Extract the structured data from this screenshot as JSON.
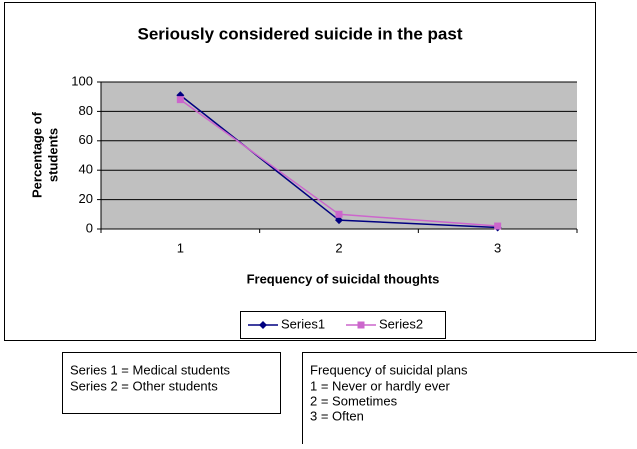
{
  "chart_data": {
    "type": "line",
    "title": "Seriously considered suicide in the past",
    "ylabel": [
      "Percentage of",
      "students"
    ],
    "xlabel": "Frequency of suicidal thoughts",
    "categories": [
      "1",
      "2",
      "3"
    ],
    "series": [
      {
        "name": "Series1",
        "color": "#000080",
        "marker": "diamond",
        "values": [
          91,
          6,
          1
        ]
      },
      {
        "name": "Series2",
        "color": "#cc66cc",
        "marker": "square",
        "values": [
          88,
          10,
          2
        ]
      }
    ],
    "ylim": [
      0,
      100
    ],
    "yticks": [
      0,
      20,
      40,
      60,
      80,
      100
    ],
    "grid": true,
    "legend": "bottom"
  },
  "notes": {
    "series_key": [
      "Series 1 = Medical students",
      "Series 2 = Other students"
    ],
    "plans_key": {
      "title": "Frequency of suicidal plans",
      "items": [
        "1 = Never or hardly ever",
        "2 = Sometimes",
        "3 = Often"
      ]
    }
  }
}
